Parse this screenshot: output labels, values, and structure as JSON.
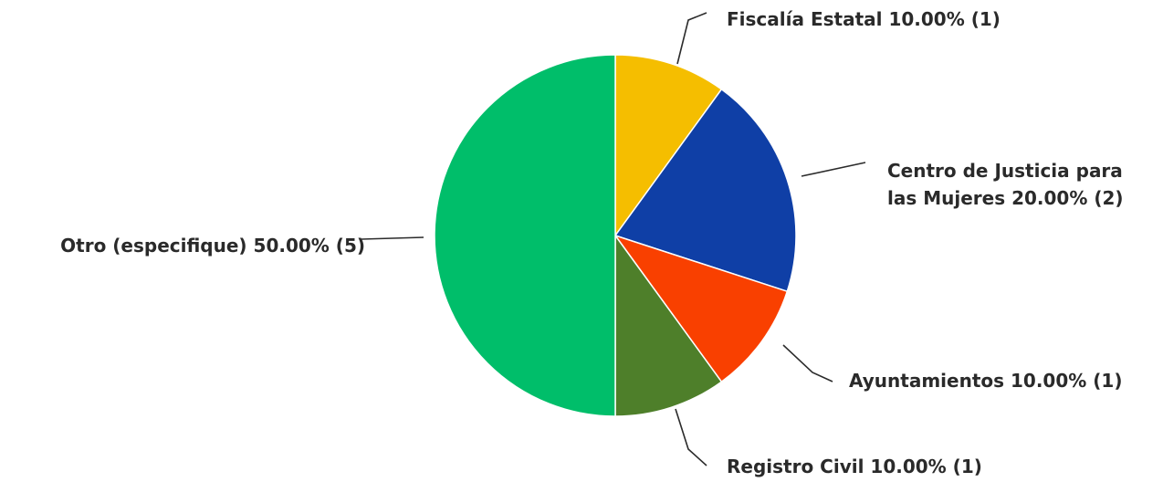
{
  "chart_data": {
    "type": "pie",
    "slices": [
      {
        "name": "Fiscalía Estatal",
        "percent": 10.0,
        "count": 1,
        "color": "#F5BE00",
        "label_lines": [
          "Fiscalía Estatal 10.00% (1)"
        ]
      },
      {
        "name": "Centro de Justicia para las Mujeres",
        "percent": 20.0,
        "count": 2,
        "color": "#0F3FA6",
        "label_lines": [
          "Centro de Justicia para",
          "las Mujeres 20.00% (2)"
        ]
      },
      {
        "name": "Ayuntamientos",
        "percent": 10.0,
        "count": 1,
        "color": "#F94000",
        "label_lines": [
          "Ayuntamientos 10.00% (1)"
        ]
      },
      {
        "name": "Registro Civil",
        "percent": 10.0,
        "count": 1,
        "color": "#4E7F2A",
        "label_lines": [
          "Registro Civil 10.00% (1)"
        ]
      },
      {
        "name": "Otro (especifique)",
        "percent": 50.0,
        "count": 5,
        "color": "#00BE6A",
        "label_lines": [
          "Otro (especifique) 50.00% (5)"
        ]
      }
    ]
  }
}
